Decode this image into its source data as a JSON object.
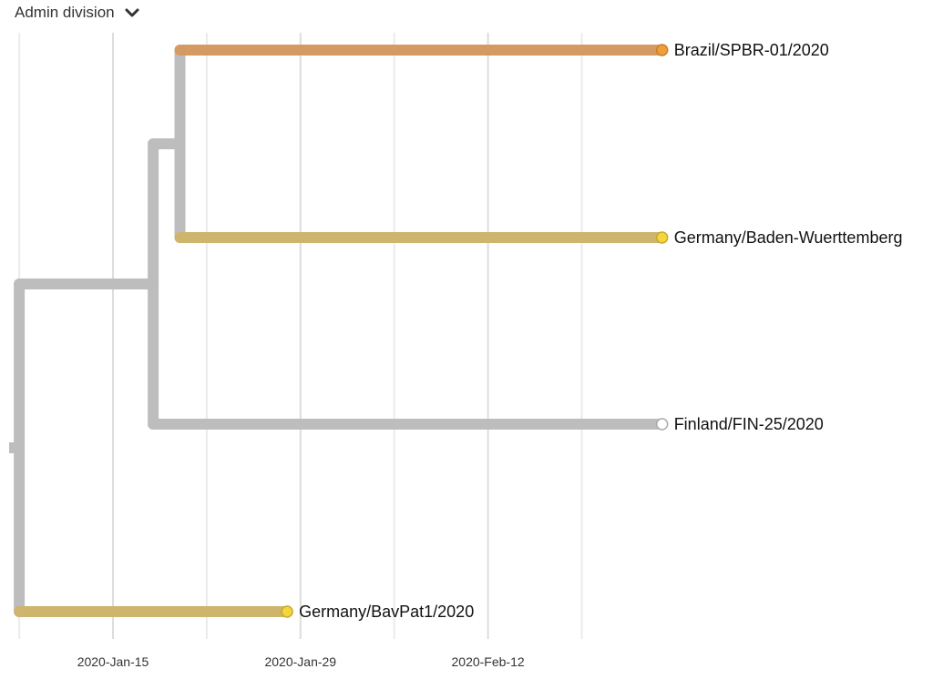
{
  "header": {
    "color_by_label": "Admin division",
    "dropdown_icon": "chevron-down-icon"
  },
  "chart_data": {
    "type": "phylogenetic-tree",
    "x_axis": {
      "type": "date",
      "ticks": [
        {
          "date": "2020-01-15",
          "label": "2020-Jan-15",
          "major": true
        },
        {
          "date": "2020-01-29",
          "label": "2020-Jan-29",
          "major": true
        },
        {
          "date": "2020-02-12",
          "label": "2020-Feb-12",
          "major": true
        }
      ],
      "minor_ticks": [
        "2020-01-08",
        "2020-01-22",
        "2020-02-05",
        "2020-02-19"
      ],
      "range": [
        "2020-01-06",
        "2020-02-26"
      ],
      "grid": true
    },
    "colors": {
      "branch_default": "#bdbdbd",
      "grid_major": "#dddddd",
      "grid_minor": "#ebebeb",
      "brazil": "#d59a62",
      "germany": "#cdb56e",
      "germany_tip": "#f3d63e",
      "brazil_tip": "#ee9f3c",
      "finland_tip": "#ffffff"
    },
    "nodes": [
      {
        "id": "root",
        "date": "2020-01-08",
        "parent": null
      },
      {
        "id": "n1",
        "date": "2020-01-18",
        "parent": "root"
      },
      {
        "id": "n2",
        "date": "2020-01-20",
        "parent": "n1"
      },
      {
        "id": "brazil",
        "date": "2020-02-25",
        "parent": "n2",
        "label": "Brazil/SPBR-01/2020",
        "color": "brazil",
        "tip_color": "brazil_tip"
      },
      {
        "id": "bw",
        "date": "2020-02-25",
        "parent": "n2",
        "label": "Germany/Baden-Wuerttemberg",
        "color": "germany",
        "tip_color": "germany_tip"
      },
      {
        "id": "finland",
        "date": "2020-02-25",
        "parent": "n1",
        "label": "Finland/FIN-25/2020",
        "color": "branch_default",
        "tip_color": "finland_tip"
      },
      {
        "id": "bavpat",
        "date": "2020-01-28",
        "parent": "root",
        "label": "Germany/BavPat1/2020",
        "color": "germany",
        "tip_color": "germany_tip"
      }
    ]
  }
}
